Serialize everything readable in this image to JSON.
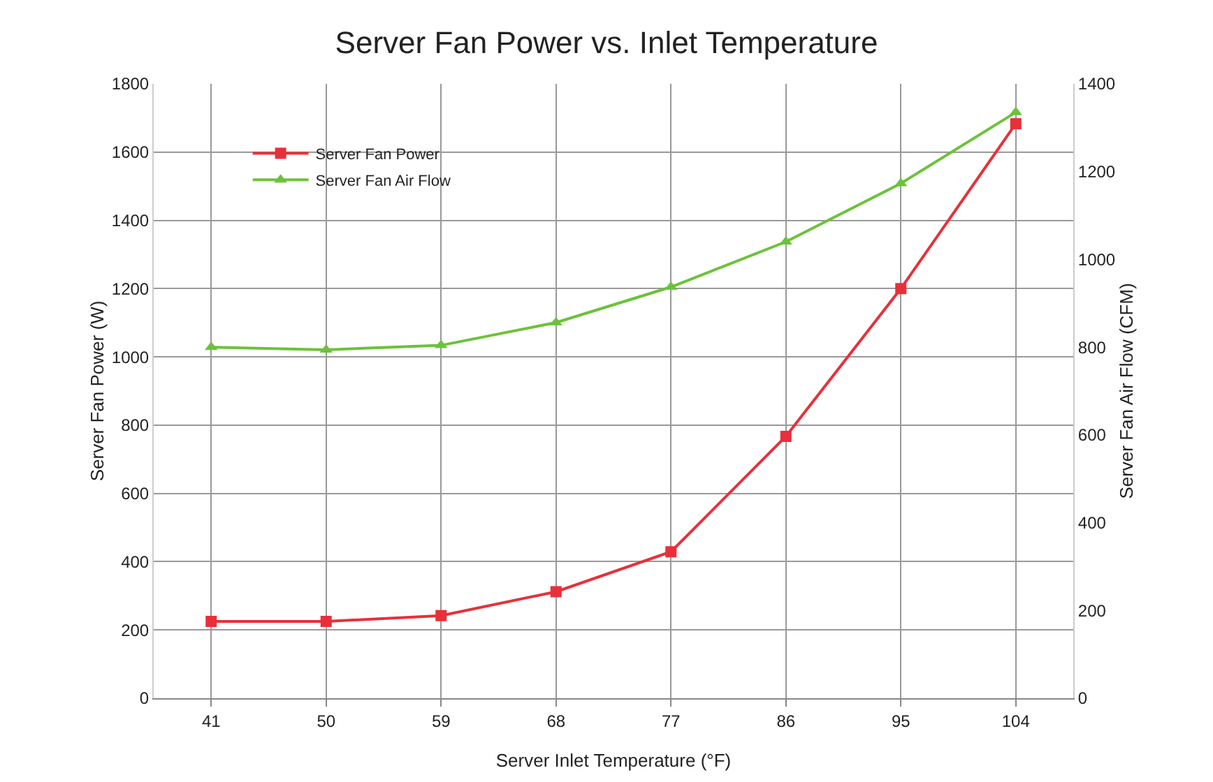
{
  "chart_data": {
    "type": "line",
    "title": "Server Fan Power vs. Inlet Temperature",
    "xlabel": "Server Inlet Temperature (°F)",
    "ylabel": "Server Fan Power (W)",
    "y2label": "Server Fan Air Flow (CFM)",
    "categories": [
      "41",
      "50",
      "59",
      "68",
      "77",
      "86",
      "95",
      "104"
    ],
    "series": [
      {
        "name": "Server Fan Power",
        "color": "#e8303a",
        "marker": "square",
        "values": [
          225,
          225,
          242,
          312,
          429,
          767,
          1200,
          1683
        ]
      },
      {
        "name": "Server Fan Air Flow",
        "color": "#6cc23a",
        "marker": "triangle",
        "axis": "y2",
        "values": [
          800,
          794,
          804,
          856,
          937,
          1040,
          1173,
          1335
        ]
      }
    ],
    "ylim": [
      0,
      1800
    ],
    "yticks": [
      0,
      200,
      400,
      600,
      800,
      1000,
      1200,
      1400,
      1600,
      1800
    ],
    "y2lim": [
      0,
      1400
    ],
    "y2ticks": [
      0,
      200,
      400,
      600,
      800,
      1000,
      1200,
      1400
    ],
    "grid": true,
    "legend": "top left",
    "line_style": "solid"
  }
}
